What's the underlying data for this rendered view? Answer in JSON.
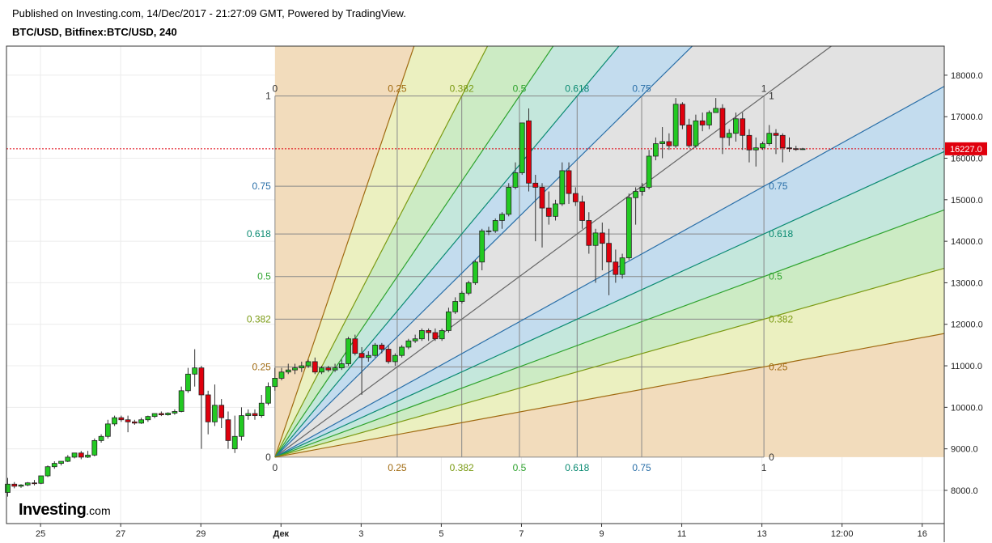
{
  "header": {
    "published": "Published on Investing.com, 14/Dec/2017 - 21:27:09 GMT, Powered by TradingView.",
    "symbol": "BTC/USD, Bitfinex:BTC/USD, 240"
  },
  "logo": {
    "brand": "Investing",
    "suffix": ".com"
  },
  "chart_data": {
    "type": "candlestick",
    "price_axis": {
      "labels": [
        "8000.0",
        "9000.0",
        "10000.0",
        "11000.0",
        "12000.0",
        "13000.0",
        "14000.0",
        "15000.0",
        "16000.0",
        "17000.0",
        "18000.0"
      ],
      "values": [
        8000,
        9000,
        10000,
        11000,
        12000,
        13000,
        14000,
        15000,
        16000,
        17000,
        18000
      ],
      "range": [
        7200,
        18700
      ]
    },
    "time_axis": {
      "labels": [
        "25",
        "27",
        "29",
        "Дек",
        "3",
        "5",
        "7",
        "9",
        "11",
        "13",
        "12:00",
        "16"
      ],
      "positions_days": [
        0,
        2,
        4,
        6,
        8,
        10,
        12,
        14,
        16,
        18,
        20,
        22
      ],
      "range_days": [
        -0.85,
        22.55
      ]
    },
    "current_price": {
      "label": "16227.0",
      "value": 16227,
      "color": "#e0000d"
    },
    "colors": {
      "up": "#22c922",
      "down": "#e0000d",
      "grid": "#ececec"
    },
    "gann_box": {
      "time_start_day": 5.85,
      "time_end_day": 18.05,
      "price_low": 8800,
      "price_high": 17500,
      "levels": [
        0,
        0.25,
        0.382,
        0.5,
        0.618,
        0.75,
        1
      ],
      "level_labels": [
        "0",
        "0.25",
        "0.382",
        "0.5",
        "0.618",
        "0.75",
        "1"
      ],
      "fan_colors": [
        "#a06a10",
        "#7a9a12",
        "#2ea32e",
        "#0a8a72",
        "#2a6fa8",
        "#666666"
      ],
      "zone_colors": [
        "#f2dcbc",
        "#ebf0c0",
        "#ccebc4",
        "#c4e7dc",
        "#c3dcee",
        "#e2e2e2"
      ]
    },
    "candles": [
      {
        "o": 7950,
        "h": 8300,
        "c": 8150,
        "l": 7850
      },
      {
        "o": 8150,
        "h": 8200,
        "c": 8100,
        "l": 8050
      },
      {
        "o": 8100,
        "h": 8150,
        "c": 8130,
        "l": 8060
      },
      {
        "o": 8130,
        "h": 8200,
        "c": 8180,
        "l": 8100
      },
      {
        "o": 8180,
        "h": 8250,
        "c": 8170,
        "l": 8120
      },
      {
        "o": 8170,
        "h": 8350,
        "c": 8350,
        "l": 8150
      },
      {
        "o": 8350,
        "h": 8600,
        "c": 8570,
        "l": 8320
      },
      {
        "o": 8570,
        "h": 8700,
        "c": 8650,
        "l": 8520
      },
      {
        "o": 8650,
        "h": 8700,
        "c": 8700,
        "l": 8600
      },
      {
        "o": 8700,
        "h": 8850,
        "c": 8800,
        "l": 8680
      },
      {
        "o": 8800,
        "h": 8900,
        "c": 8900,
        "l": 8770
      },
      {
        "o": 8900,
        "h": 8950,
        "c": 8800,
        "l": 8750
      },
      {
        "o": 8800,
        "h": 8950,
        "c": 8850,
        "l": 8780
      },
      {
        "o": 8850,
        "h": 9250,
        "c": 9200,
        "l": 8820
      },
      {
        "o": 9200,
        "h": 9350,
        "c": 9300,
        "l": 9150
      },
      {
        "o": 9300,
        "h": 9700,
        "c": 9600,
        "l": 9250
      },
      {
        "o": 9600,
        "h": 9800,
        "c": 9750,
        "l": 9550
      },
      {
        "o": 9750,
        "h": 9800,
        "c": 9700,
        "l": 9650
      },
      {
        "o": 9700,
        "h": 9800,
        "c": 9650,
        "l": 9400
      },
      {
        "o": 9650,
        "h": 9700,
        "c": 9620,
        "l": 9580
      },
      {
        "o": 9620,
        "h": 9750,
        "c": 9700,
        "l": 9600
      },
      {
        "o": 9700,
        "h": 9800,
        "c": 9780,
        "l": 9650
      },
      {
        "o": 9780,
        "h": 9850,
        "c": 9850,
        "l": 9740
      },
      {
        "o": 9850,
        "h": 9900,
        "c": 9820,
        "l": 9790
      },
      {
        "o": 9820,
        "h": 9880,
        "c": 9860,
        "l": 9800
      },
      {
        "o": 9860,
        "h": 9950,
        "c": 9900,
        "l": 9820
      },
      {
        "o": 9900,
        "h": 10500,
        "c": 10400,
        "l": 9880
      },
      {
        "o": 10400,
        "h": 10950,
        "c": 10800,
        "l": 10350
      },
      {
        "o": 10800,
        "h": 11400,
        "c": 10950,
        "l": 10500
      },
      {
        "o": 10950,
        "h": 11000,
        "c": 10300,
        "l": 9000
      },
      {
        "o": 10300,
        "h": 10400,
        "c": 9650,
        "l": 9350
      },
      {
        "o": 9650,
        "h": 10550,
        "c": 10050,
        "l": 9550
      },
      {
        "o": 10050,
        "h": 10200,
        "c": 9750,
        "l": 9500
      },
      {
        "o": 9700,
        "h": 9900,
        "c": 9200,
        "l": 9000
      },
      {
        "o": 9000,
        "h": 9800,
        "c": 9300,
        "l": 8900
      },
      {
        "o": 9300,
        "h": 10000,
        "c": 9800,
        "l": 9200
      },
      {
        "o": 9800,
        "h": 9950,
        "c": 9850,
        "l": 9700
      },
      {
        "o": 9850,
        "h": 9950,
        "c": 9800,
        "l": 9700
      },
      {
        "o": 9800,
        "h": 10300,
        "c": 10100,
        "l": 9750
      },
      {
        "o": 10100,
        "h": 10600,
        "c": 10500,
        "l": 10050
      },
      {
        "o": 10500,
        "h": 10950,
        "c": 10700,
        "l": 10400
      },
      {
        "o": 10700,
        "h": 10950,
        "c": 10850,
        "l": 10650
      },
      {
        "o": 10850,
        "h": 11050,
        "c": 10900,
        "l": 10800
      },
      {
        "o": 10900,
        "h": 11050,
        "c": 10950,
        "l": 10800
      },
      {
        "o": 10950,
        "h": 11100,
        "c": 11000,
        "l": 10850
      },
      {
        "o": 11000,
        "h": 11150,
        "c": 11100,
        "l": 10950
      },
      {
        "o": 11100,
        "h": 11200,
        "c": 10850,
        "l": 10800
      },
      {
        "o": 10850,
        "h": 11000,
        "c": 10950,
        "l": 10800
      },
      {
        "o": 10950,
        "h": 11000,
        "c": 10900,
        "l": 10850
      },
      {
        "o": 10900,
        "h": 11050,
        "c": 10950,
        "l": 10850
      },
      {
        "o": 10950,
        "h": 11150,
        "c": 11050,
        "l": 10900
      },
      {
        "o": 11050,
        "h": 11700,
        "c": 11650,
        "l": 11000
      },
      {
        "o": 11650,
        "h": 11750,
        "c": 11300,
        "l": 11250
      },
      {
        "o": 11300,
        "h": 11450,
        "c": 11200,
        "l": 10300
      },
      {
        "o": 11200,
        "h": 11350,
        "c": 11250,
        "l": 11100
      },
      {
        "o": 11250,
        "h": 11550,
        "c": 11500,
        "l": 11200
      },
      {
        "o": 11500,
        "h": 11550,
        "c": 11400,
        "l": 11300
      },
      {
        "o": 11400,
        "h": 11500,
        "c": 11100,
        "l": 11050
      },
      {
        "o": 11100,
        "h": 11300,
        "c": 11250,
        "l": 11000
      },
      {
        "o": 11250,
        "h": 11500,
        "c": 11450,
        "l": 11200
      },
      {
        "o": 11450,
        "h": 11650,
        "c": 11600,
        "l": 11400
      },
      {
        "o": 11600,
        "h": 11750,
        "c": 11650,
        "l": 11550
      },
      {
        "o": 11650,
        "h": 11900,
        "c": 11850,
        "l": 11600
      },
      {
        "o": 11850,
        "h": 11900,
        "c": 11800,
        "l": 11600
      },
      {
        "o": 11800,
        "h": 11900,
        "c": 11650,
        "l": 11600
      },
      {
        "o": 11650,
        "h": 11900,
        "c": 11850,
        "l": 11600
      },
      {
        "o": 11850,
        "h": 12400,
        "c": 12300,
        "l": 11800
      },
      {
        "o": 12300,
        "h": 12650,
        "c": 12550,
        "l": 12250
      },
      {
        "o": 12550,
        "h": 12800,
        "c": 12750,
        "l": 12500
      },
      {
        "o": 12750,
        "h": 13050,
        "c": 13000,
        "l": 12700
      },
      {
        "o": 13000,
        "h": 13550,
        "c": 13500,
        "l": 12950
      },
      {
        "o": 13500,
        "h": 14300,
        "c": 14250,
        "l": 13300
      },
      {
        "o": 14250,
        "h": 14350,
        "c": 14250,
        "l": 14150
      },
      {
        "o": 14250,
        "h": 14550,
        "c": 14500,
        "l": 14200
      },
      {
        "o": 14500,
        "h": 14700,
        "c": 14650,
        "l": 14300
      },
      {
        "o": 14650,
        "h": 15400,
        "c": 15300,
        "l": 14600
      },
      {
        "o": 15300,
        "h": 15900,
        "c": 15650,
        "l": 15250
      },
      {
        "o": 15650,
        "h": 16850,
        "c": 16850,
        "l": 15600
      },
      {
        "o": 16900,
        "h": 17200,
        "c": 15400,
        "l": 15200
      },
      {
        "o": 15400,
        "h": 15600,
        "c": 15300,
        "l": 14000
      },
      {
        "o": 15300,
        "h": 15400,
        "c": 14800,
        "l": 13850
      },
      {
        "o": 14800,
        "h": 15200,
        "c": 14600,
        "l": 14400
      },
      {
        "o": 14600,
        "h": 15000,
        "c": 14900,
        "l": 14500
      },
      {
        "o": 14900,
        "h": 15900,
        "c": 15700,
        "l": 14850
      },
      {
        "o": 15700,
        "h": 15900,
        "c": 15150,
        "l": 14900
      },
      {
        "o": 15150,
        "h": 15300,
        "c": 14950,
        "l": 14850
      },
      {
        "o": 14950,
        "h": 15100,
        "c": 14500,
        "l": 14300
      },
      {
        "o": 14500,
        "h": 14700,
        "c": 13900,
        "l": 13700
      },
      {
        "o": 13900,
        "h": 14300,
        "c": 14200,
        "l": 13000
      },
      {
        "o": 14200,
        "h": 14450,
        "c": 13950,
        "l": 13300
      },
      {
        "o": 13950,
        "h": 14300,
        "c": 13500,
        "l": 12700
      },
      {
        "o": 13500,
        "h": 13800,
        "c": 13200,
        "l": 13000
      },
      {
        "o": 13200,
        "h": 13700,
        "c": 13600,
        "l": 13100
      },
      {
        "o": 13600,
        "h": 15150,
        "c": 15050,
        "l": 13550
      },
      {
        "o": 15050,
        "h": 15300,
        "c": 15200,
        "l": 14400
      },
      {
        "o": 15200,
        "h": 15400,
        "c": 15300,
        "l": 15100
      },
      {
        "o": 15300,
        "h": 16200,
        "c": 16050,
        "l": 15250
      },
      {
        "o": 16050,
        "h": 16500,
        "c": 16350,
        "l": 15950
      },
      {
        "o": 16350,
        "h": 16750,
        "c": 16400,
        "l": 16000
      },
      {
        "o": 16400,
        "h": 16600,
        "c": 16300,
        "l": 16200
      },
      {
        "o": 16300,
        "h": 17450,
        "c": 17300,
        "l": 16250
      },
      {
        "o": 17300,
        "h": 17350,
        "c": 16800,
        "l": 16700
      },
      {
        "o": 16800,
        "h": 16950,
        "c": 16300,
        "l": 16250
      },
      {
        "o": 16300,
        "h": 17050,
        "c": 16900,
        "l": 16250
      },
      {
        "o": 16900,
        "h": 17100,
        "c": 16800,
        "l": 16650
      },
      {
        "o": 16800,
        "h": 17150,
        "c": 17100,
        "l": 16700
      },
      {
        "o": 17100,
        "h": 17450,
        "c": 17200,
        "l": 17100
      },
      {
        "o": 17200,
        "h": 17300,
        "c": 16500,
        "l": 16100
      },
      {
        "o": 16500,
        "h": 16700,
        "c": 16600,
        "l": 16300
      },
      {
        "o": 16600,
        "h": 17100,
        "c": 16950,
        "l": 16400
      },
      {
        "o": 16950,
        "h": 17100,
        "c": 16550,
        "l": 16200
      },
      {
        "o": 16550,
        "h": 16700,
        "c": 16200,
        "l": 15900
      },
      {
        "o": 16200,
        "h": 16500,
        "c": 16250,
        "l": 15800
      },
      {
        "o": 16250,
        "h": 16400,
        "c": 16350,
        "l": 16200
      },
      {
        "o": 16350,
        "h": 16800,
        "c": 16600,
        "l": 16300
      },
      {
        "o": 16600,
        "h": 16700,
        "c": 16550,
        "l": 16100
      },
      {
        "o": 16550,
        "h": 16600,
        "c": 16250,
        "l": 15900
      },
      {
        "o": 16250,
        "h": 16500,
        "c": 16230,
        "l": 16150
      },
      {
        "o": 16230,
        "h": 16300,
        "c": 16210,
        "l": 16180
      },
      {
        "o": 16210,
        "h": 16250,
        "c": 16227,
        "l": 16200
      }
    ],
    "candle_spacing_days": 0.1667
  }
}
